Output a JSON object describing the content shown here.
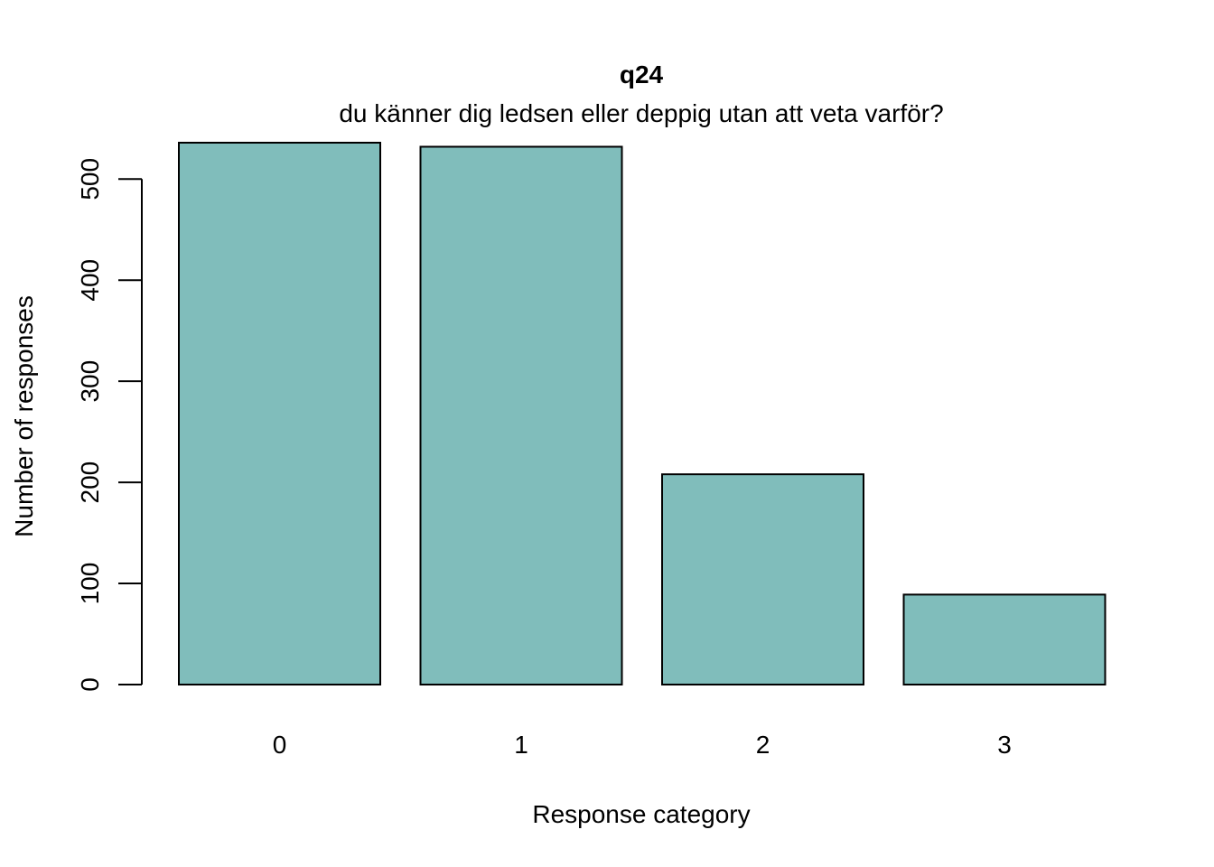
{
  "chart_data": {
    "type": "bar",
    "title": "q24",
    "subtitle": "du känner dig ledsen eller deppig utan att veta varför?",
    "xlabel": "Response category",
    "ylabel": "Number of responses",
    "categories": [
      "0",
      "1",
      "2",
      "3"
    ],
    "values": [
      536,
      532,
      208,
      89
    ],
    "ylim": [
      0,
      536
    ],
    "yticks": [
      0,
      100,
      200,
      300,
      400,
      500
    ],
    "ytick_labels": [
      "0",
      "100",
      "200",
      "300",
      "400",
      "500"
    ],
    "grid": false,
    "bar_color": "#80BDBB",
    "bar_edge_color": "#000000"
  }
}
